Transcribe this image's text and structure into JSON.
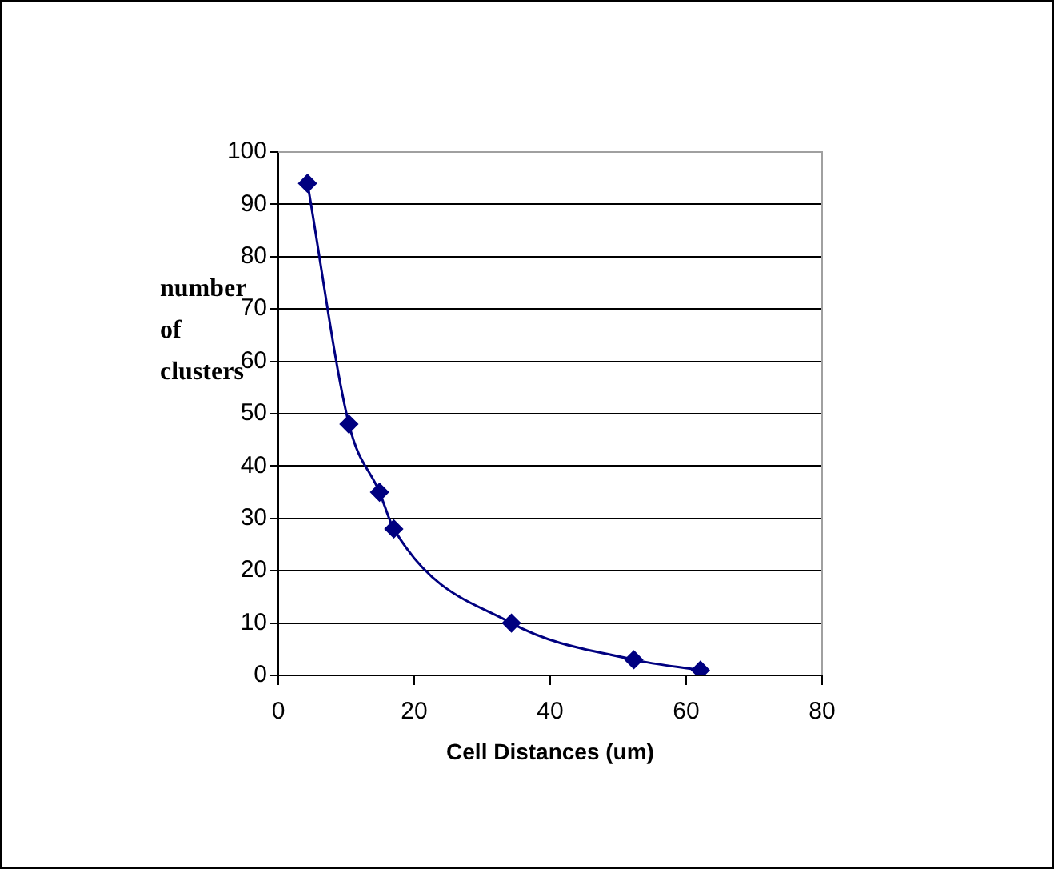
{
  "chart_data": {
    "type": "line",
    "xlabel": "Cell Distances (um)",
    "ylabel": "number of clusters",
    "x": [
      4.3,
      10.4,
      14.9,
      17,
      34.3,
      52.3,
      62.1
    ],
    "series": [
      {
        "color": "#000080",
        "values": [
          94,
          48,
          35,
          28,
          10,
          3,
          1
        ]
      }
    ],
    "xlim": [
      0,
      80
    ],
    "xticks": [
      0,
      20,
      40,
      60,
      80
    ],
    "ylim": [
      0,
      100
    ],
    "yticks": [
      0,
      10,
      20,
      30,
      40,
      50,
      60,
      70,
      80,
      90,
      100
    ],
    "grid": "y",
    "legend": false,
    "marker": "diamond",
    "line_style": "solid"
  }
}
